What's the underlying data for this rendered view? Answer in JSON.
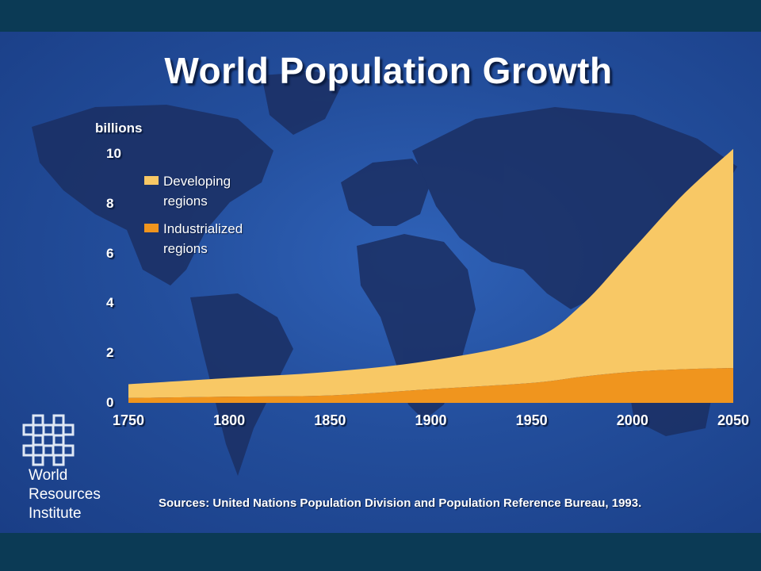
{
  "slide": {
    "title": "World Population Growth",
    "sources": "Sources: United Nations Population Division and Population Reference Bureau, 1993.",
    "organization": {
      "line1": "World",
      "line2": "Resources",
      "line3": "Institute"
    }
  },
  "colors": {
    "developing": "#f8c865",
    "industrialized": "#f0951e",
    "background": "#234e9c",
    "frame": "#0b3a55"
  },
  "chart_data": {
    "type": "area",
    "stacked": true,
    "title": "World Population Growth",
    "ylabel": "billions",
    "xlabel": "",
    "x": [
      1750,
      1800,
      1850,
      1900,
      1950,
      1975,
      2000,
      2025,
      2050
    ],
    "xticks": [
      "1750",
      "1800",
      "1850",
      "1900",
      "1950",
      "2000",
      "2050"
    ],
    "yticks": [
      "0",
      "2",
      "4",
      "6",
      "8",
      "10"
    ],
    "ylim": [
      0,
      10
    ],
    "xlim": [
      1750,
      2050
    ],
    "legend_position": "top-left",
    "series": [
      {
        "name": "Industrialized regions",
        "values": [
          0.2,
          0.25,
          0.3,
          0.55,
          0.8,
          1.05,
          1.25,
          1.35,
          1.4
        ]
      },
      {
        "name": "Developing regions",
        "values": [
          0.55,
          0.75,
          0.95,
          1.15,
          1.75,
          2.9,
          4.9,
          7.0,
          8.8
        ]
      }
    ],
    "legend": [
      {
        "line1": "Developing",
        "line2": "regions",
        "color": "#f8c865"
      },
      {
        "line1": "Industrialized",
        "line2": "regions",
        "color": "#f0951e"
      }
    ]
  }
}
